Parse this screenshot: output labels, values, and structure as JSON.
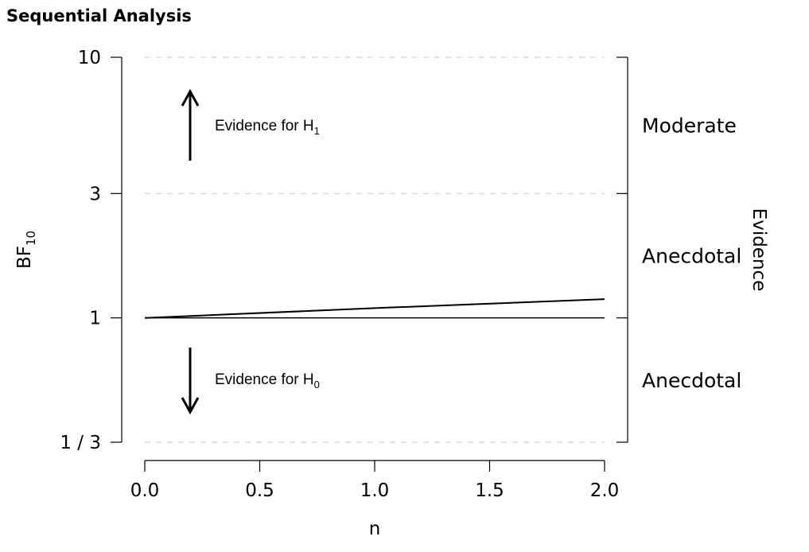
{
  "panel": {
    "title": "Sequential Analysis"
  },
  "chart_data": {
    "type": "line",
    "xlabel": "n",
    "ylabel": {
      "base": "BF",
      "sub": "10"
    },
    "xlim": [
      0,
      2
    ],
    "x_ticks": [
      0,
      0.5,
      1,
      1.5,
      2
    ],
    "x_tick_labels": [
      "0.0",
      "0.5",
      "1.0",
      "1.5",
      "2.0"
    ],
    "y_scale": "log",
    "ylim": [
      0.3333,
      10
    ],
    "y_ticks": [
      0.3333,
      1,
      3,
      10
    ],
    "y_tick_labels": [
      "1 / 3",
      "1",
      "3",
      "10"
    ],
    "series": [
      {
        "x": [
          0,
          1,
          2
        ],
        "y": [
          1,
          1.09,
          1.18
        ]
      }
    ],
    "reference_lines": [
      {
        "y": 1,
        "style": "solid"
      },
      {
        "y": 3,
        "style": "dashed",
        "color": "#d9d9d9"
      },
      {
        "y": 10,
        "style": "dashed",
        "color": "#d9d9d9"
      },
      {
        "y": 0.3333,
        "style": "dashed",
        "color": "#d9d9d9"
      }
    ],
    "annotations": {
      "h1": {
        "text": "Evidence for H",
        "sub": "1",
        "arrow": "up"
      },
      "h0": {
        "text": "Evidence for H",
        "sub": "0",
        "arrow": "down"
      }
    },
    "right_axis": {
      "title": "Evidence",
      "ticks": [
        0.3333,
        1,
        3,
        10
      ],
      "regions": [
        {
          "label": "Moderate",
          "from": 3,
          "to": 10
        },
        {
          "label": "Anecdotal",
          "from": 1,
          "to": 3
        },
        {
          "label": "Anecdotal",
          "from": 0.3333,
          "to": 1
        }
      ]
    }
  }
}
